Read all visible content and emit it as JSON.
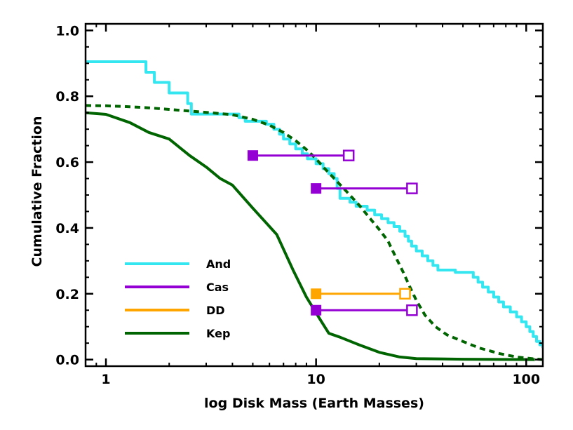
{
  "chart_data": {
    "type": "line",
    "title": "",
    "xlabel": "log Disk Mass (Earth Masses)",
    "ylabel": "Cumulative Fraction",
    "xscale": "log",
    "xlim": [
      0.8,
      120
    ],
    "ylim": [
      -0.02,
      1.02
    ],
    "x_ticks": [
      1,
      10,
      100
    ],
    "x_tick_labels": [
      "1",
      "10",
      "100"
    ],
    "y_ticks": [
      0.0,
      0.2,
      0.4,
      0.6,
      0.8,
      1.0
    ],
    "y_tick_labels": [
      "0.0",
      "0.2",
      "0.4",
      "0.6",
      "0.8",
      "1.0"
    ],
    "legend_position": "lower-left",
    "colors": {
      "And": "#33e6f0",
      "Cas": "#9400d3",
      "DD": "#ffa500",
      "Kep": "#006400"
    },
    "legend": [
      {
        "name": "And",
        "color": "#33e6f0"
      },
      {
        "name": "Cas",
        "color": "#9400d3"
      },
      {
        "name": "DD",
        "color": "#ffa500"
      },
      {
        "name": "Kep",
        "color": "#006400"
      }
    ],
    "series": [
      {
        "name": "And",
        "style": "step",
        "points": [
          [
            0.8,
            0.905
          ],
          [
            1.55,
            0.905
          ],
          [
            1.55,
            0.873
          ],
          [
            1.7,
            0.873
          ],
          [
            1.7,
            0.842
          ],
          [
            2.0,
            0.842
          ],
          [
            2.0,
            0.81
          ],
          [
            2.45,
            0.81
          ],
          [
            2.45,
            0.778
          ],
          [
            2.55,
            0.778
          ],
          [
            2.55,
            0.746
          ],
          [
            4.3,
            0.746
          ],
          [
            4.3,
            0.735
          ],
          [
            4.6,
            0.735
          ],
          [
            4.6,
            0.724
          ],
          [
            5.8,
            0.724
          ],
          [
            5.8,
            0.715
          ],
          [
            6.3,
            0.715
          ],
          [
            6.3,
            0.7
          ],
          [
            6.7,
            0.7
          ],
          [
            6.7,
            0.685
          ],
          [
            7.0,
            0.685
          ],
          [
            7.0,
            0.67
          ],
          [
            7.5,
            0.67
          ],
          [
            7.5,
            0.655
          ],
          [
            8.0,
            0.655
          ],
          [
            8.0,
            0.64
          ],
          [
            8.6,
            0.64
          ],
          [
            8.6,
            0.625
          ],
          [
            9.1,
            0.625
          ],
          [
            9.1,
            0.61
          ],
          [
            10.0,
            0.61
          ],
          [
            10.0,
            0.595
          ],
          [
            10.8,
            0.595
          ],
          [
            10.8,
            0.58
          ],
          [
            11.5,
            0.58
          ],
          [
            11.5,
            0.565
          ],
          [
            12.2,
            0.565
          ],
          [
            12.2,
            0.55
          ],
          [
            12.6,
            0.55
          ],
          [
            12.6,
            0.52
          ],
          [
            13.0,
            0.52
          ],
          [
            13.0,
            0.49
          ],
          [
            14.5,
            0.49
          ],
          [
            14.5,
            0.478
          ],
          [
            15.5,
            0.478
          ],
          [
            15.5,
            0.466
          ],
          [
            17.5,
            0.466
          ],
          [
            17.5,
            0.454
          ],
          [
            19.0,
            0.454
          ],
          [
            19.0,
            0.44
          ],
          [
            20.5,
            0.44
          ],
          [
            20.5,
            0.428
          ],
          [
            22.0,
            0.428
          ],
          [
            22.0,
            0.416
          ],
          [
            23.5,
            0.416
          ],
          [
            23.5,
            0.404
          ],
          [
            25.0,
            0.404
          ],
          [
            25.0,
            0.39
          ],
          [
            26.5,
            0.39
          ],
          [
            26.5,
            0.375
          ],
          [
            27.5,
            0.375
          ],
          [
            27.5,
            0.36
          ],
          [
            28.5,
            0.36
          ],
          [
            28.5,
            0.345
          ],
          [
            30.0,
            0.345
          ],
          [
            30.0,
            0.33
          ],
          [
            32.0,
            0.33
          ],
          [
            32.0,
            0.315
          ],
          [
            34.0,
            0.315
          ],
          [
            34.0,
            0.3
          ],
          [
            36.0,
            0.3
          ],
          [
            36.0,
            0.286
          ],
          [
            38.0,
            0.286
          ],
          [
            38.0,
            0.272
          ],
          [
            46.0,
            0.272
          ],
          [
            46.0,
            0.265
          ],
          [
            56.0,
            0.265
          ],
          [
            56.0,
            0.25
          ],
          [
            59.0,
            0.25
          ],
          [
            59.0,
            0.235
          ],
          [
            62.0,
            0.235
          ],
          [
            62.0,
            0.22
          ],
          [
            66.0,
            0.22
          ],
          [
            66.0,
            0.205
          ],
          [
            70.0,
            0.205
          ],
          [
            70.0,
            0.19
          ],
          [
            74.0,
            0.19
          ],
          [
            74.0,
            0.175
          ],
          [
            78.0,
            0.175
          ],
          [
            78.0,
            0.16
          ],
          [
            84.0,
            0.16
          ],
          [
            84.0,
            0.145
          ],
          [
            90.0,
            0.145
          ],
          [
            90.0,
            0.13
          ],
          [
            95.0,
            0.13
          ],
          [
            95.0,
            0.115
          ],
          [
            100.0,
            0.115
          ],
          [
            100.0,
            0.1
          ],
          [
            104.0,
            0.1
          ],
          [
            104.0,
            0.085
          ],
          [
            108.0,
            0.085
          ],
          [
            108.0,
            0.07
          ],
          [
            112.0,
            0.07
          ],
          [
            112.0,
            0.055
          ],
          [
            116.0,
            0.055
          ],
          [
            116.0,
            0.045
          ],
          [
            120.0,
            0.045
          ],
          [
            120.0,
            0.035
          ]
        ]
      },
      {
        "name": "Kep",
        "style": "solid",
        "points": [
          [
            0.8,
            0.75
          ],
          [
            1.0,
            0.745
          ],
          [
            1.3,
            0.72
          ],
          [
            1.6,
            0.69
          ],
          [
            2.0,
            0.67
          ],
          [
            2.5,
            0.62
          ],
          [
            3.0,
            0.585
          ],
          [
            3.5,
            0.55
          ],
          [
            4.0,
            0.53
          ],
          [
            5.0,
            0.46
          ],
          [
            6.5,
            0.38
          ],
          [
            7.8,
            0.27
          ],
          [
            9.0,
            0.19
          ],
          [
            10.5,
            0.12
          ],
          [
            11.5,
            0.08
          ],
          [
            13.0,
            0.068
          ],
          [
            16.0,
            0.045
          ],
          [
            20.0,
            0.022
          ],
          [
            25.0,
            0.008
          ],
          [
            30.0,
            0.003
          ],
          [
            50.0,
            0.001
          ],
          [
            110.0,
            0.0
          ]
        ]
      },
      {
        "name": "Kep model",
        "style": "dashed",
        "points": [
          [
            0.8,
            0.772
          ],
          [
            1.0,
            0.771
          ],
          [
            1.3,
            0.768
          ],
          [
            1.6,
            0.765
          ],
          [
            2.0,
            0.76
          ],
          [
            2.5,
            0.755
          ],
          [
            3.0,
            0.751
          ],
          [
            4.0,
            0.744
          ],
          [
            5.0,
            0.73
          ],
          [
            6.0,
            0.712
          ],
          [
            7.0,
            0.69
          ],
          [
            8.0,
            0.665
          ],
          [
            9.0,
            0.638
          ],
          [
            10.0,
            0.61
          ],
          [
            11.0,
            0.58
          ],
          [
            12.0,
            0.555
          ],
          [
            14.0,
            0.51
          ],
          [
            16.0,
            0.47
          ],
          [
            18.0,
            0.43
          ],
          [
            20.0,
            0.395
          ],
          [
            22.0,
            0.36
          ],
          [
            24.0,
            0.31
          ],
          [
            26.0,
            0.265
          ],
          [
            28.0,
            0.22
          ],
          [
            30.0,
            0.18
          ],
          [
            33.0,
            0.135
          ],
          [
            37.0,
            0.1
          ],
          [
            42.0,
            0.075
          ],
          [
            50.0,
            0.055
          ],
          [
            60.0,
            0.035
          ],
          [
            75.0,
            0.018
          ],
          [
            90.0,
            0.008
          ],
          [
            110.0,
            0.002
          ],
          [
            120.0,
            0.0
          ]
        ]
      }
    ],
    "ranges": [
      {
        "name": "Cas",
        "y": 0.62,
        "x_min": 5.0,
        "x_max": 14.3,
        "color": "#9400d3"
      },
      {
        "name": "Cas",
        "y": 0.52,
        "x_min": 10.0,
        "x_max": 28.6,
        "color": "#9400d3"
      },
      {
        "name": "DD",
        "y": 0.2,
        "x_min": 10.0,
        "x_max": 26.5,
        "color": "#ffa500"
      },
      {
        "name": "Cas",
        "y": 0.15,
        "x_min": 10.0,
        "x_max": 28.6,
        "color": "#9400d3"
      }
    ]
  }
}
